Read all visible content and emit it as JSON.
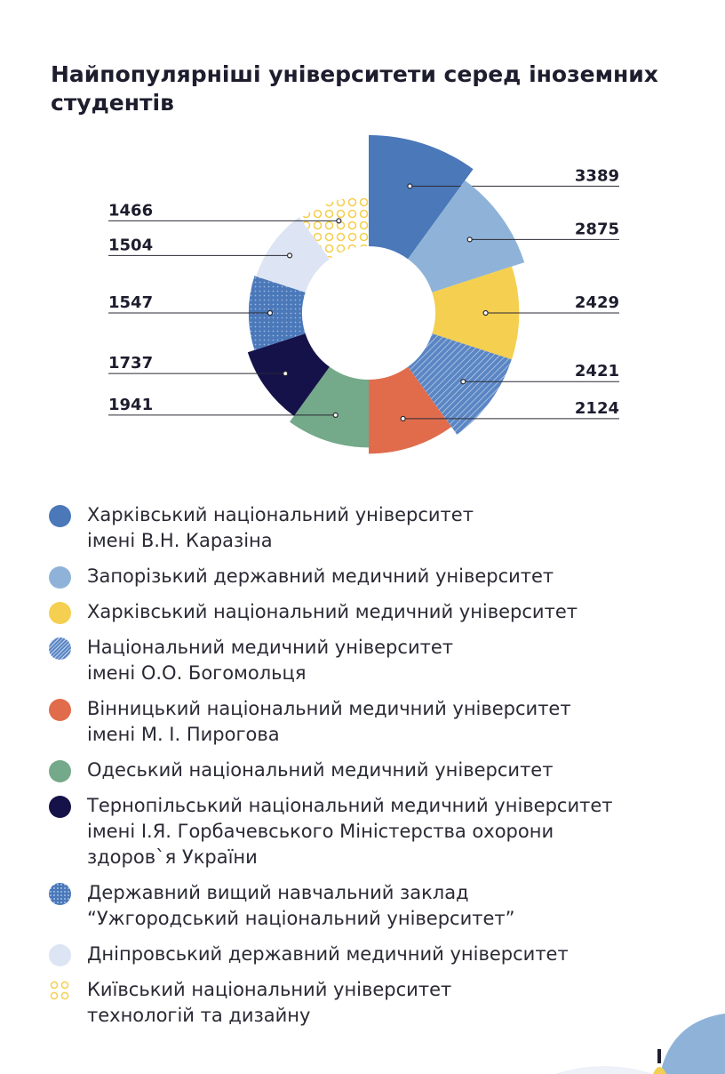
{
  "chart_data": {
    "type": "rose",
    "title": "Найпопулярніші університети серед іноземних студентів",
    "categories": [
      "Харківський національний університет\nімені В.Н. Каразіна",
      "Запорізький державний медичний університет",
      "Харківський національний медичний університет",
      "Національний медичний університет\nімені О.О. Богомольця",
      "Вінницький національний медичний університет\nімені М. І. Пирогова",
      "Одеський національний медичний університет",
      "Тернопільський національний медичний університет\nімені І.Я. Горбачевського Міністерства охорони\nздоров`я України",
      "Державний вищий навчальний заклад\n“Ужгородський національний університет”",
      "Дніпровський державний медичний університет",
      "Київський національний університет\nтехнологій та дизайну"
    ],
    "values": [
      3389,
      2875,
      2429,
      2421,
      2124,
      1941,
      1737,
      1547,
      1504,
      1466
    ],
    "colors": [
      "#4a78b9",
      "#8fb3d8",
      "#f4cf50",
      "#5b86c4",
      "#e06c4c",
      "#74a98a",
      "#15124a",
      "#4a78b9",
      "#dde4f3",
      "#f4cf50"
    ],
    "patterns": [
      null,
      null,
      null,
      "hatch",
      null,
      null,
      null,
      "dots",
      null,
      "rings"
    ]
  }
}
